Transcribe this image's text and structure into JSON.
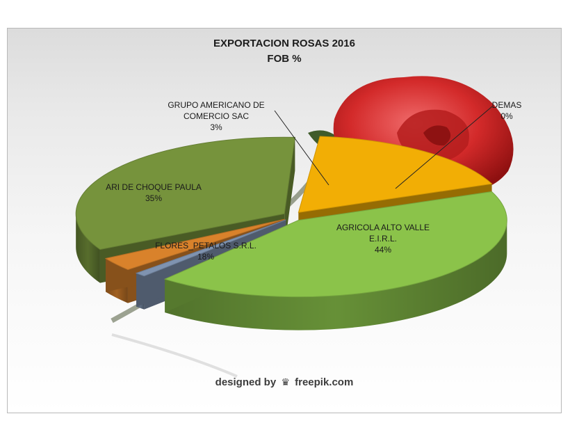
{
  "title": "EXPORTACION  ROSAS 2016",
  "subtitle": "FOB  %",
  "watermark": {
    "prefix": "designed by",
    "brand": "freepik.com",
    "icon": "crown-logo-icon"
  },
  "colors": {
    "agricola": "#8bc34a",
    "demas": "#7f93b0",
    "grupo": "#d9822b",
    "ari": "#76933c",
    "flores": "#f2ae05"
  },
  "chart_data": {
    "type": "pie",
    "title": "EXPORTACION  ROSAS 2016",
    "subtitle": "FOB  %",
    "style": "3d-exploded",
    "slices": [
      {
        "name_lines": [
          "AGRICOLA ALTO VALLE",
          "E.I.R.L."
        ],
        "value": 44,
        "label": "44%",
        "color_key": "agricola"
      },
      {
        "name_lines": [
          "DEMAS"
        ],
        "value": 0,
        "label": "0%",
        "color_key": "demas"
      },
      {
        "name_lines": [
          "GRUPO AMERICANO DE",
          "COMERCIO SAC"
        ],
        "value": 3,
        "label": "3%",
        "color_key": "grupo"
      },
      {
        "name_lines": [
          "ARI DE CHOQUE PAULA"
        ],
        "value": 35,
        "label": "35%",
        "color_key": "ari"
      },
      {
        "name_lines": [
          "FLORES_PETALOS S.R.L."
        ],
        "value": 18,
        "label": "18%",
        "color_key": "flores"
      }
    ]
  }
}
